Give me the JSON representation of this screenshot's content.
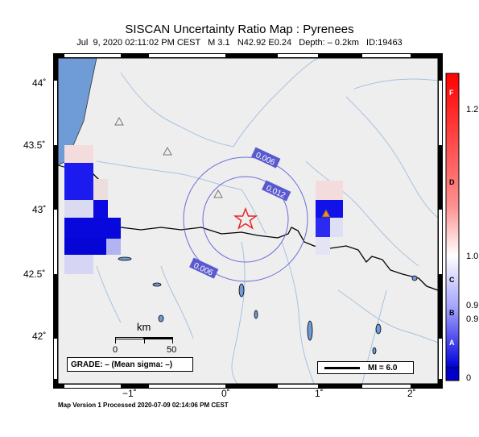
{
  "title": "SISCAN Uncertainty Ratio Map : Pyrenees",
  "subtitle": "Jul  9, 2020 02:11:02 PM CEST   M 3.1   N42.92 E0.24   Depth: – 0.2km   ID:19463",
  "footer": "Map Version 1 Processed 2020-07-09 02:14:06 PM CEST",
  "map": {
    "lat_ticks": [
      "44˚",
      "43.5˚",
      "43˚",
      "42.5˚",
      "42˚"
    ],
    "lon_ticks": [
      "−1˚",
      "0˚",
      "1˚",
      "2˚"
    ],
    "contours": [
      {
        "label": "0.006"
      },
      {
        "label": "0.012"
      },
      {
        "label": "0.006"
      }
    ],
    "epicenter_color": "#e8262b",
    "land_color": "#eeeeee",
    "sea_color": "#6f9bd6",
    "river_color": "#a8c2e0",
    "contour_color": "#6a6ad8"
  },
  "scale_bar": {
    "unit": "km",
    "start": "0",
    "end": "50"
  },
  "grade": "GRADE: – (Mean sigma: –)",
  "mmi_legend": "MI = 6.0",
  "colorbar": {
    "letters": [
      "F",
      "D",
      "C",
      "B",
      "A"
    ],
    "values": [
      "1.2",
      "1.0",
      "0.9",
      "0.9",
      "0"
    ],
    "top_color": "#ff0000",
    "mid_color": "#ffffff",
    "bottom_color": "#0000cc"
  }
}
